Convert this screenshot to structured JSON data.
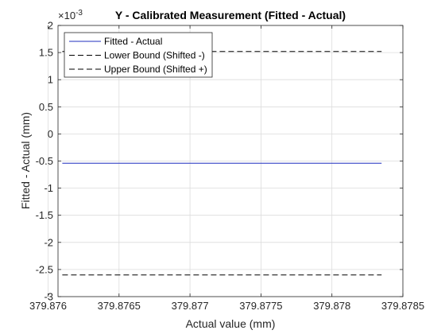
{
  "chart_data": {
    "type": "line",
    "title": "Y - Calibrated Measurement (Fitted - Actual)",
    "xlabel": "Actual value (mm)",
    "ylabel": "Fitted - Actual (mm)",
    "y_exponent_label": "×10",
    "y_exponent_power": "-3",
    "xlim": [
      379.87607,
      379.8785
    ],
    "ylim": [
      -3,
      2
    ],
    "x_ticks": [
      379.876,
      379.8765,
      379.877,
      379.8775,
      379.878,
      379.8785
    ],
    "x_tick_labels": [
      "379.876",
      "379.8765",
      "379.877",
      "379.8775",
      "379.878",
      "379.8785"
    ],
    "y_ticks": [
      -3,
      -2.5,
      -2,
      -1.5,
      -1,
      -0.5,
      0,
      0.5,
      1,
      1.5,
      2
    ],
    "y_tick_labels": [
      "-3",
      "-2.5",
      "-2",
      "-1.5",
      "-1",
      "-0.5",
      "0",
      "0.5",
      "1",
      "1.5",
      "2"
    ],
    "grid": true,
    "legend_position": "top-left",
    "series": [
      {
        "name": "Fitted - Actual",
        "color": "#1f2fbf",
        "style": "solid",
        "x": [
          379.8761,
          379.87835
        ],
        "y": [
          -0.54,
          -0.54
        ]
      },
      {
        "name": "Lower Bound (Shifted -)",
        "color": "#000000",
        "style": "dashed",
        "x": [
          379.8761,
          379.87835
        ],
        "y": [
          -2.6,
          -2.6
        ]
      },
      {
        "name": "Upper Bound (Shifted +)",
        "color": "#000000",
        "style": "dashed",
        "x": [
          379.8761,
          379.87835
        ],
        "y": [
          1.52,
          1.52
        ]
      }
    ]
  }
}
